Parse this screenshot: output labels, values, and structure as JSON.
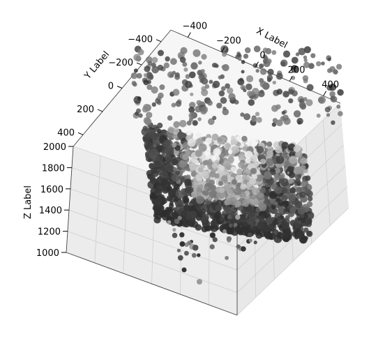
{
  "chart_data": {
    "type": "scatter",
    "projection": "3d",
    "colormap": "greys",
    "xlabel": "X Label",
    "ylabel": "Y Label",
    "zlabel": "Z Label",
    "xlim": [
      -500,
      500
    ],
    "ylim": [
      -500,
      500
    ],
    "zlim": [
      1000,
      2000
    ],
    "x_ticks": [
      "−400",
      "−200",
      "0",
      "200",
      "400"
    ],
    "y_ticks": [
      "−400",
      "−200",
      "0",
      "200",
      "400"
    ],
    "z_ticks": [
      "1000",
      "1200",
      "1400",
      "1600",
      "1800",
      "2000"
    ],
    "grid": true,
    "pane_color": "#f2f2f2",
    "grid_color": "#cfcfcf",
    "point_dark": "#2b2b2b",
    "point_light": "#f4f4f4"
  }
}
